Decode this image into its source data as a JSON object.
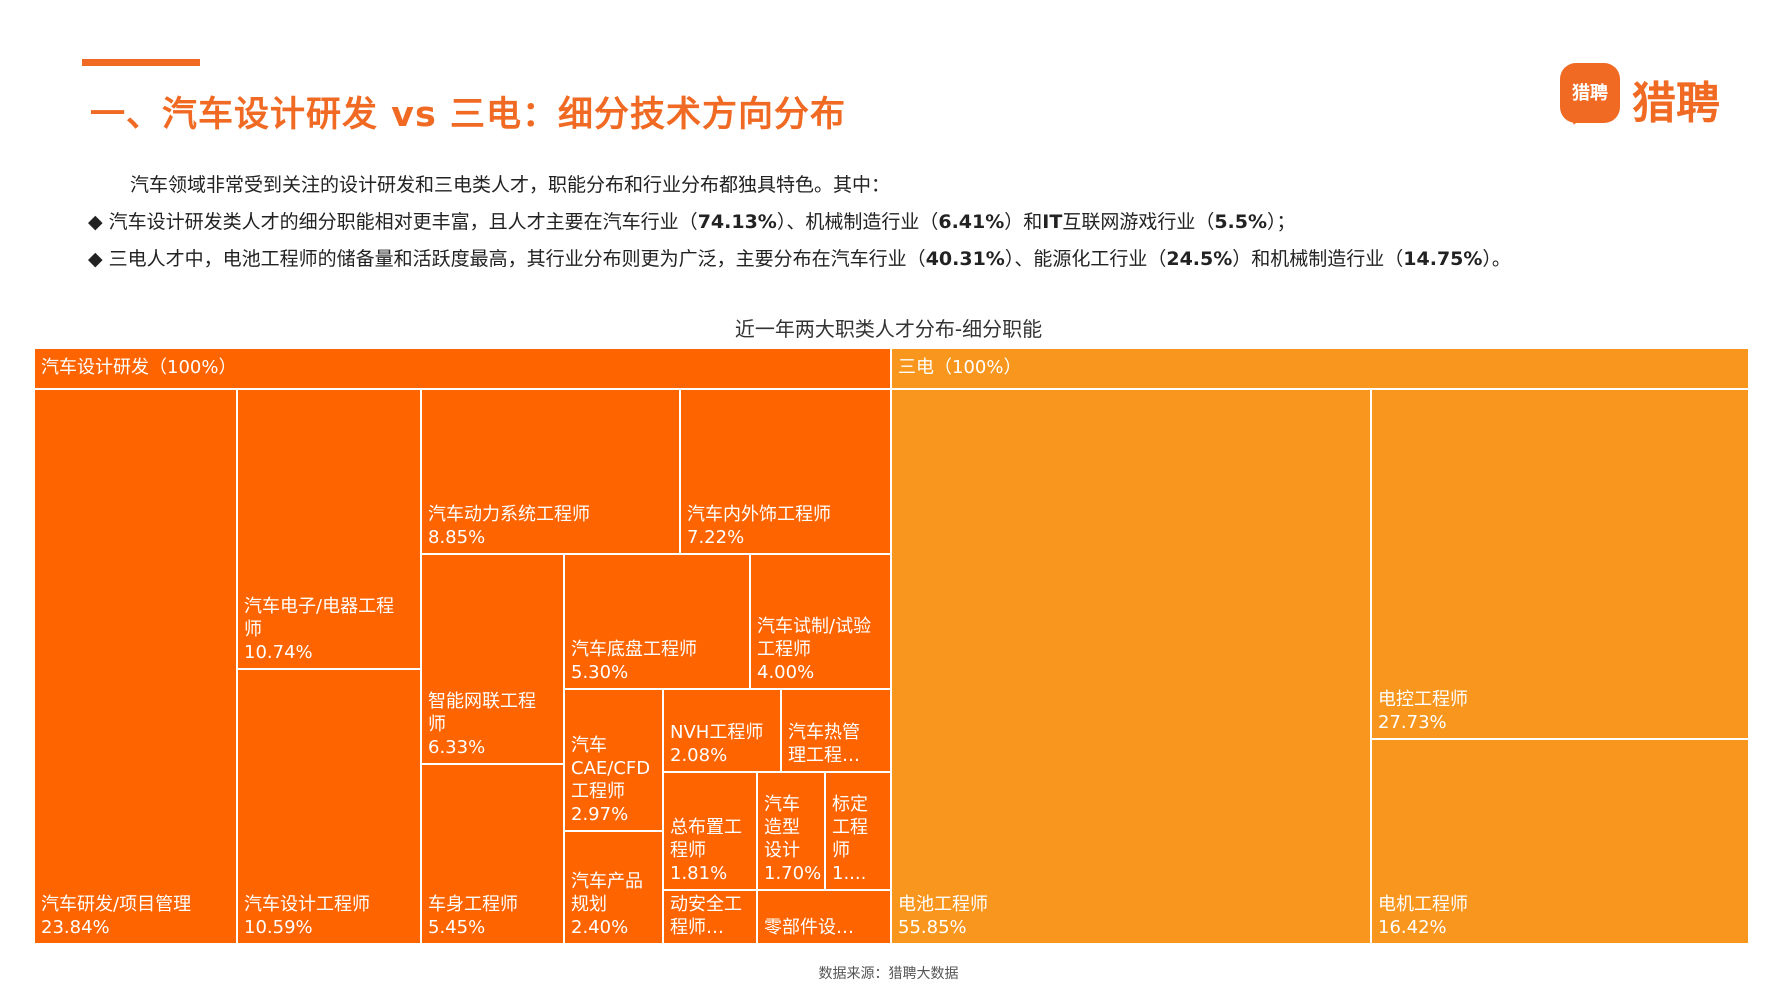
{
  "header": {
    "title": "一、汽车设计研发 vs 三电：细分技术方向分布",
    "logo_mark": "猎聘",
    "logo_text": "猎聘"
  },
  "intro": "汽车领域非常受到关注的设计研发和三电类人才，职能分布和行业分布都独具特色。其中：",
  "bullets": [
    {
      "marker": "◆",
      "parts": [
        "汽车设计研发类人才的细分职能相对更丰富，且人才主要在汽车行业（",
        "74.13%",
        "）、机械制造行业（",
        "6.41%",
        "）和",
        "IT",
        "互联网游戏行业（",
        "5.5%",
        "）；"
      ]
    },
    {
      "marker": "◆",
      "parts": [
        "三电人才中，电池工程师的储备量和活跃度最高，其行业分布则更为广泛，主要分布在汽车行业（",
        "40.31%",
        "）、能源化工行业（",
        "24.5%",
        "）和机械制造行业（",
        "14.75%",
        "）。"
      ]
    }
  ],
  "chart_data": {
    "type": "treemap",
    "title": "近一年两大职类人才分布-细分职能",
    "colors": {
      "design": "#fe6400",
      "sandian": "#f8961e"
    },
    "groups": [
      {
        "key": "design",
        "label": "汽车设计研发（100%）",
        "items": [
          {
            "name": "汽车研发/项目管理",
            "value": 23.84,
            "display": "23.84%"
          },
          {
            "name": "汽车电子/电器工程\n师",
            "value": 10.74,
            "display": "10.74%"
          },
          {
            "name": "汽车设计工程师",
            "value": 10.59,
            "display": "10.59%"
          },
          {
            "name": "汽车动力系统工程师",
            "value": 8.85,
            "display": "8.85%"
          },
          {
            "name": "汽车内外饰工程师",
            "value": 7.22,
            "display": "7.22%"
          },
          {
            "name": "智能网联工程\n师",
            "value": 6.33,
            "display": "6.33%"
          },
          {
            "name": "车身工程师",
            "value": 5.45,
            "display": "5.45%"
          },
          {
            "name": "汽车底盘工程师",
            "value": 5.3,
            "display": "5.30%"
          },
          {
            "name": "汽车试制/试验\n工程师",
            "value": 4.0,
            "display": "4.00%"
          },
          {
            "name": "汽车\nCAE/CFD\n工程师",
            "value": 2.97,
            "display": "2.97%"
          },
          {
            "name": "NVH工程师",
            "value": 2.08,
            "display": "2.08%"
          },
          {
            "name": "汽车热管\n理工程…",
            "value": null,
            "display": ""
          },
          {
            "name": "汽车产品\n规划",
            "value": 2.4,
            "display": "2.40%"
          },
          {
            "name": "总布置工\n程师",
            "value": 1.81,
            "display": "1.81%"
          },
          {
            "name": "汽车\n造型\n设计",
            "value": 1.7,
            "display": "1.70%"
          },
          {
            "name": "标定\n工程\n师",
            "value": null,
            "display": "1...."
          },
          {
            "name": "汽车主被\n动安全工\n程师…",
            "value": null,
            "display": ""
          },
          {
            "name": "零部件设…",
            "value": null,
            "display": ""
          }
        ]
      },
      {
        "key": "sandian",
        "label": "三电（100%）",
        "items": [
          {
            "name": "电池工程师",
            "value": 55.85,
            "display": "55.85%"
          },
          {
            "name": "电控工程师",
            "value": 27.73,
            "display": "27.73%"
          },
          {
            "name": "电机工程师",
            "value": 16.42,
            "display": "16.42%"
          }
        ]
      }
    ]
  },
  "source": "数据来源：猎聘大数据"
}
